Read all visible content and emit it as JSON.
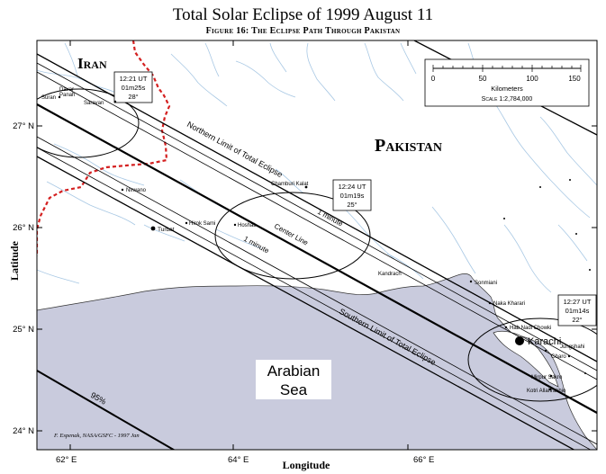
{
  "title": "Total Solar Eclipse of 1999 August 11",
  "subtitle": "Figure 16: The Eclipse Path Through Pakistan",
  "axes": {
    "x_label": "Longitude",
    "y_label": "Latitude",
    "x_ticks": [
      "62° E",
      "64° E",
      "66° E"
    ],
    "y_ticks": [
      "27° N",
      "26° N",
      "25° N",
      "24° N"
    ]
  },
  "regions": {
    "iran": "Iran",
    "pakistan": "Pakistan",
    "sea_line1": "Arabian",
    "sea_line2": "Sea"
  },
  "path_labels": {
    "northern": "Northern Limit of Total Eclipse",
    "southern": "Southern Limit of Total Eclipse",
    "center": "Center Line",
    "minute_top": "1 minute",
    "minute_bottom": "1 minute",
    "percent": "95%"
  },
  "time_boxes": [
    {
      "time": "12:21 UT",
      "duration": "01m25s",
      "altitude": "28°"
    },
    {
      "time": "12:24 UT",
      "duration": "01m19s",
      "altitude": "25°"
    },
    {
      "time": "12:27 UT",
      "duration": "01m14s",
      "altitude": "22°"
    }
  ],
  "scale_bar": {
    "ticks": [
      "0",
      "50",
      "100",
      "150"
    ],
    "unit": "Kilometers",
    "scale": "Scale  1:2,784,000"
  },
  "cities": {
    "davar_panah_1": "Davar",
    "davar_panah_2": "Panah",
    "suran": "Suran",
    "saravan": "Saravan",
    "nirwano": "Nirwano",
    "hirok_sami": "Hirok Sami",
    "hoshab": "Hoshab",
    "turbat": "Turbat",
    "chamburi_kalat": "Chamburi Kalat",
    "kandrach": "Kandrach",
    "sonmiani": "Sonmiani",
    "naka_kharari": "Naka Kharari",
    "hab_nadi_chowki": "Hab Nadi Chowki",
    "karachi": "Karachi",
    "jungshahi": "Jungshahi",
    "gharo": "Gharo",
    "mirpur_sakro": "Mirpur Sakro",
    "kotri_allahrakhio": "Kotri Allahrakhio"
  },
  "credit": "F. Espenak, NASA/GSFC - 1997 Jan",
  "colors": {
    "sea": "#c9cbdd",
    "rivers": "#a8c8e4",
    "border": "#d42020"
  }
}
